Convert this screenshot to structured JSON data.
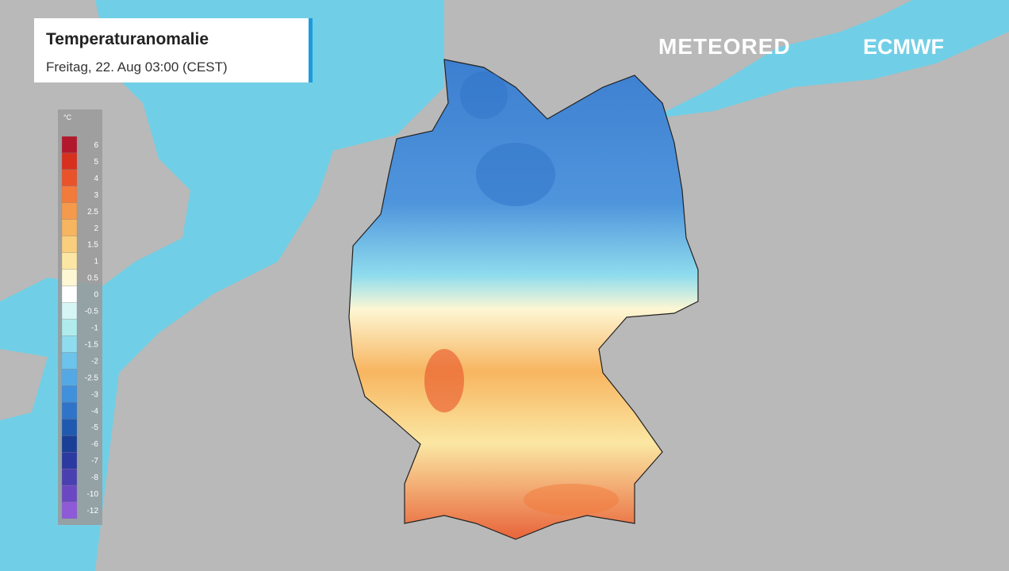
{
  "header": {
    "title": "Temperaturanomalie",
    "subtitle": "Freitag, 22. Aug 03:00 (CEST)"
  },
  "logos": [
    "METEORED",
    "ECMWF"
  ],
  "legend": {
    "unit": "°C",
    "steps": [
      {
        "label": "6",
        "color": "#b2182b"
      },
      {
        "label": "5",
        "color": "#d7301f"
      },
      {
        "label": "4",
        "color": "#e8532a"
      },
      {
        "label": "3",
        "color": "#f27a3a"
      },
      {
        "label": "2.5",
        "color": "#f59a4c"
      },
      {
        "label": "2",
        "color": "#f7b560"
      },
      {
        "label": "1.5",
        "color": "#f9cf7e"
      },
      {
        "label": "1",
        "color": "#fbe7a3"
      },
      {
        "label": "0.5",
        "color": "#fdf7d4"
      },
      {
        "label": "0",
        "color": "#ffffff"
      },
      {
        "label": "-0.5",
        "color": "#d6f5f5"
      },
      {
        "label": "-1",
        "color": "#b0ecee"
      },
      {
        "label": "-1.5",
        "color": "#8fdcee"
      },
      {
        "label": "-2",
        "color": "#6cc4ec"
      },
      {
        "label": "-2.5",
        "color": "#54a9e4"
      },
      {
        "label": "-3",
        "color": "#4190dc"
      },
      {
        "label": "-4",
        "color": "#2f74c8"
      },
      {
        "label": "-5",
        "color": "#1f5ab0"
      },
      {
        "label": "-6",
        "color": "#1a3f96"
      },
      {
        "label": "-7",
        "color": "#2b3aa0"
      },
      {
        "label": "-8",
        "color": "#4a3fb0"
      },
      {
        "label": "-10",
        "color": "#6a48c4"
      },
      {
        "label": "-12",
        "color": "#8e5ad8"
      }
    ]
  }
}
